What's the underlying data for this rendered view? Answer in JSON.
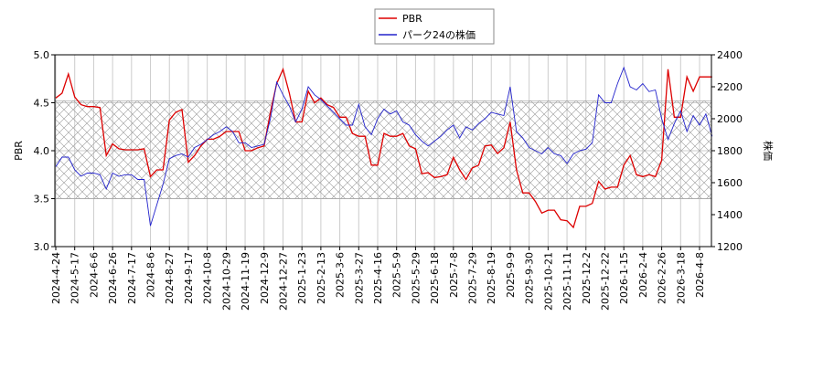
{
  "chart_data": {
    "type": "line",
    "legend": "top-center",
    "grid": true,
    "band": [
      3.5,
      4.52
    ],
    "y_label": "PBR",
    "y2_label": "株価",
    "categories": [
      "2024-4-24",
      null,
      null,
      "2024-5-17",
      null,
      null,
      "2024-6-6",
      null,
      null,
      "2024-6-26",
      null,
      null,
      "2024-7-17",
      null,
      null,
      "2024-8-6",
      null,
      null,
      "2024-8-27",
      null,
      null,
      "2024-9-17",
      null,
      null,
      "2024-10-8",
      null,
      null,
      "2024-10-29",
      null,
      null,
      "2024-11-19",
      null,
      null,
      "2024-12-9",
      null,
      null,
      "2024-12-27",
      null,
      null,
      "2025-1-23",
      null,
      null,
      "2025-2-13",
      null,
      null,
      "2025-3-6",
      null,
      null,
      "2025-3-27",
      null,
      null,
      "2025-4-16",
      null,
      null,
      "2025-5-9",
      null,
      null,
      "2025-5-29",
      null,
      null,
      "2025-6-18",
      null,
      null,
      "2025-7-8",
      null,
      null,
      "2025-7-29",
      null,
      null,
      "2025-8-19",
      null,
      null,
      "2025-9-9",
      null,
      null,
      "2025-9-30",
      null,
      null,
      "2025-10-21",
      null,
      null,
      "2025-11-11",
      null,
      null,
      "2025-12-2",
      null,
      null,
      "2025-12-22",
      null,
      null,
      "2026-1-15",
      null,
      null,
      "2026-2-4",
      null,
      null,
      "2026-2-26",
      null,
      null,
      "2026-3-18",
      null,
      null,
      "2026-4-8",
      null,
      null
    ],
    "series": [
      {
        "name": "PBR",
        "color": "#dd0000",
        "axis": "y",
        "values": [
          4.55,
          4.6,
          4.8,
          4.56,
          4.48,
          4.46,
          4.46,
          4.45,
          3.95,
          4.07,
          4.02,
          4.01,
          4.01,
          4.01,
          4.02,
          3.73,
          3.8,
          3.8,
          4.32,
          4.4,
          4.43,
          3.88,
          3.95,
          4.05,
          4.12,
          4.12,
          4.15,
          4.2,
          4.2,
          4.2,
          4.0,
          4.0,
          4.03,
          4.05,
          4.4,
          4.7,
          4.85,
          4.6,
          4.3,
          4.3,
          4.62,
          4.5,
          4.55,
          4.48,
          4.45,
          4.35,
          4.35,
          4.18,
          4.15,
          4.15,
          3.85,
          3.85,
          4.18,
          4.15,
          4.15,
          4.18,
          4.05,
          4.02,
          3.76,
          3.77,
          3.72,
          3.73,
          3.75,
          3.93,
          3.8,
          3.7,
          3.82,
          3.85,
          4.05,
          4.06,
          3.97,
          4.03,
          4.3,
          3.8,
          3.56,
          3.56,
          3.47,
          3.35,
          3.38,
          3.38,
          3.28,
          3.27,
          3.2,
          3.42,
          3.42,
          3.45,
          3.68,
          3.6,
          3.62,
          3.62,
          3.85,
          3.95,
          3.75,
          3.73,
          3.75,
          3.73,
          3.9,
          4.85,
          4.35,
          4.35,
          4.77,
          4.62,
          4.77,
          4.77,
          4.77
        ]
      },
      {
        "name": "パーク24の株価",
        "color": "#2222cc",
        "axis": "y2",
        "values": [
          1700,
          1760,
          1760,
          1680,
          1640,
          1660,
          1660,
          1650,
          1560,
          1660,
          1640,
          1650,
          1650,
          1620,
          1620,
          1330,
          1460,
          1590,
          1750,
          1770,
          1780,
          1760,
          1820,
          1840,
          1870,
          1900,
          1920,
          1950,
          1920,
          1850,
          1850,
          1820,
          1830,
          1840,
          2000,
          2230,
          2150,
          2080,
          1980,
          2060,
          2200,
          2150,
          2120,
          2080,
          2040,
          2000,
          1960,
          1960,
          2090,
          1950,
          1900,
          2000,
          2060,
          2030,
          2050,
          1980,
          1960,
          1900,
          1860,
          1830,
          1860,
          1890,
          1930,
          1960,
          1880,
          1950,
          1930,
          1970,
          2000,
          2040,
          2030,
          2020,
          2200,
          1920,
          1880,
          1820,
          1800,
          1780,
          1820,
          1780,
          1770,
          1720,
          1780,
          1800,
          1810,
          1850,
          2150,
          2100,
          2100,
          2220,
          2320,
          2200,
          2180,
          2220,
          2170,
          2180,
          2000,
          1870,
          1970,
          2050,
          1920,
          2020,
          1960,
          2030,
          1890
        ]
      }
    ],
    "ylim": [
      3.0,
      5.0
    ],
    "yticks": [
      {
        "value": 3,
        "label": "3.0"
      },
      {
        "value": 3.5,
        "label": "3.5"
      },
      {
        "value": 4,
        "label": "4.0"
      },
      {
        "value": 4.5,
        "label": "4.5"
      },
      {
        "value": 5,
        "label": "5.0"
      }
    ],
    "y2lim": [
      1200,
      2400
    ],
    "y2ticks": [
      1200,
      1400,
      1600,
      1800,
      2000,
      2200,
      2400
    ]
  }
}
